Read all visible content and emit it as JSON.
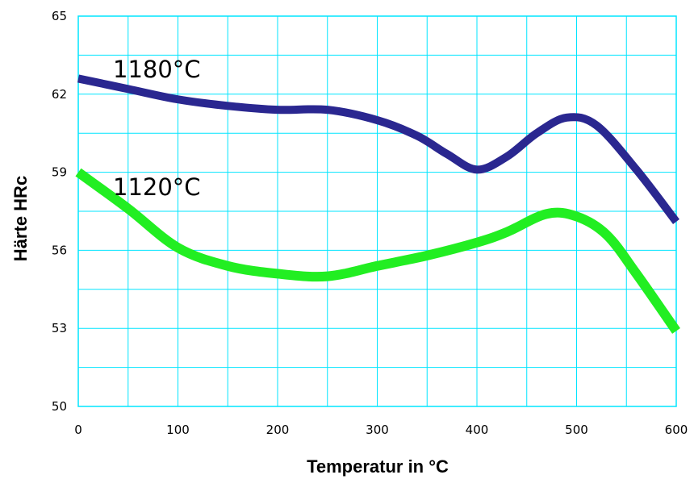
{
  "chart_data": {
    "type": "line",
    "xlabel": "Temperatur in °C",
    "ylabel": "Härte HRc",
    "xlim": [
      0,
      600
    ],
    "ylim": [
      50,
      65
    ],
    "x_ticks": [
      "0",
      "100",
      "200",
      "300",
      "400",
      "500",
      "600"
    ],
    "y_ticks": [
      "50",
      "53",
      "56",
      "59",
      "62",
      "65"
    ],
    "grid": true,
    "colors": {
      "grid": "#00e5ff",
      "frame": "#00e5ff"
    },
    "series": [
      {
        "name": "1180°C",
        "color": "#2a2790",
        "points": [
          [
            0,
            62.6
          ],
          [
            50,
            62.2
          ],
          [
            100,
            61.8
          ],
          [
            150,
            61.55
          ],
          [
            200,
            61.4
          ],
          [
            250,
            61.4
          ],
          [
            300,
            61.0
          ],
          [
            340,
            60.4
          ],
          [
            370,
            59.7
          ],
          [
            400,
            59.1
          ],
          [
            430,
            59.6
          ],
          [
            460,
            60.5
          ],
          [
            490,
            61.1
          ],
          [
            520,
            60.8
          ],
          [
            560,
            59.1
          ],
          [
            600,
            57.1
          ]
        ]
      },
      {
        "name": "1120°C",
        "color": "#22ee22",
        "points": [
          [
            0,
            59.0
          ],
          [
            50,
            57.6
          ],
          [
            100,
            56.1
          ],
          [
            150,
            55.4
          ],
          [
            200,
            55.1
          ],
          [
            250,
            55.0
          ],
          [
            300,
            55.4
          ],
          [
            350,
            55.8
          ],
          [
            400,
            56.3
          ],
          [
            430,
            56.7
          ],
          [
            470,
            57.4
          ],
          [
            500,
            57.3
          ],
          [
            530,
            56.6
          ],
          [
            560,
            55.1
          ],
          [
            600,
            52.9
          ]
        ]
      }
    ]
  }
}
